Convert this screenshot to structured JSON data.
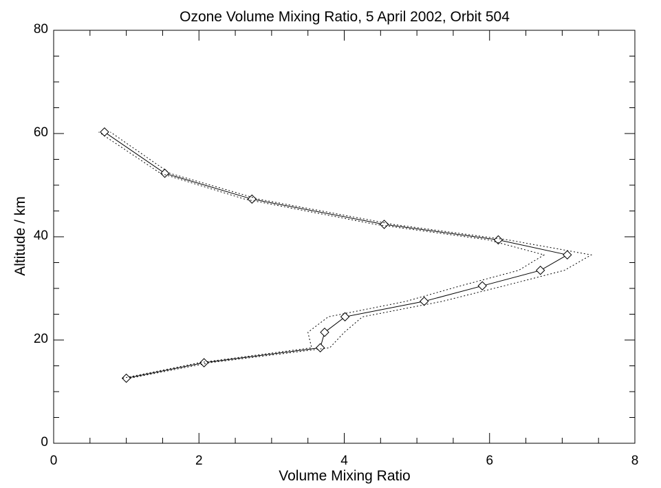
{
  "chart_data": {
    "type": "line",
    "title": "Ozone Volume Mixing Ratio, 5 April 2002, Orbit 504",
    "xlabel": "Volume Mixing Ratio",
    "ylabel": "Altitude / km",
    "xlim": [
      0,
      8
    ],
    "ylim": [
      0,
      80
    ],
    "x_major_ticks": [
      0,
      2,
      4,
      6,
      8
    ],
    "x_minor_ticks": [
      0.5,
      1,
      1.5,
      2.5,
      3,
      3.5,
      4.5,
      5,
      5.5,
      6.5,
      7,
      7.5
    ],
    "y_major_ticks": [
      0,
      20,
      40,
      60,
      80
    ],
    "y_minor_ticks": [
      5,
      10,
      15,
      25,
      30,
      35,
      45,
      50,
      55,
      65,
      70,
      75
    ],
    "x_tick_labels": [
      "0",
      "2",
      "4",
      "6",
      "8"
    ],
    "y_tick_labels": [
      "0",
      "20",
      "40",
      "60",
      "80"
    ],
    "grid": false,
    "series": [
      {
        "role": "profile",
        "line_style": "solid",
        "marker": "diamond",
        "points": [
          {
            "x": 1.0,
            "y": 12.6
          },
          {
            "x": 2.07,
            "y": 15.6
          },
          {
            "x": 3.67,
            "y": 18.5
          },
          {
            "x": 3.73,
            "y": 21.5
          },
          {
            "x": 4.01,
            "y": 24.5
          },
          {
            "x": 5.1,
            "y": 27.5
          },
          {
            "x": 5.9,
            "y": 30.5
          },
          {
            "x": 6.7,
            "y": 33.5
          },
          {
            "x": 7.07,
            "y": 36.5
          },
          {
            "x": 6.12,
            "y": 39.4
          },
          {
            "x": 4.55,
            "y": 42.4
          },
          {
            "x": 2.73,
            "y": 47.3
          },
          {
            "x": 1.53,
            "y": 52.3
          },
          {
            "x": 0.7,
            "y": 60.3
          }
        ]
      },
      {
        "role": "upper-bound",
        "line_style": "dotted",
        "marker": "none",
        "points": [
          {
            "x": 1.05,
            "y": 12.6
          },
          {
            "x": 2.15,
            "y": 15.6
          },
          {
            "x": 3.8,
            "y": 18.5
          },
          {
            "x": 4.0,
            "y": 21.5
          },
          {
            "x": 4.25,
            "y": 24.5
          },
          {
            "x": 5.35,
            "y": 27.5
          },
          {
            "x": 6.2,
            "y": 30.5
          },
          {
            "x": 7.03,
            "y": 33.5
          },
          {
            "x": 7.4,
            "y": 36.5
          },
          {
            "x": 6.25,
            "y": 39.4
          },
          {
            "x": 4.67,
            "y": 42.4
          },
          {
            "x": 2.82,
            "y": 47.3
          },
          {
            "x": 1.6,
            "y": 52.3
          },
          {
            "x": 0.78,
            "y": 60.3
          }
        ]
      },
      {
        "role": "lower-bound",
        "line_style": "dotted",
        "marker": "none",
        "points": [
          {
            "x": 0.95,
            "y": 12.6
          },
          {
            "x": 2.0,
            "y": 15.6
          },
          {
            "x": 3.55,
            "y": 18.5
          },
          {
            "x": 3.5,
            "y": 21.5
          },
          {
            "x": 3.78,
            "y": 24.5
          },
          {
            "x": 4.85,
            "y": 27.5
          },
          {
            "x": 5.6,
            "y": 30.5
          },
          {
            "x": 6.4,
            "y": 33.5
          },
          {
            "x": 6.75,
            "y": 36.5
          },
          {
            "x": 5.98,
            "y": 39.4
          },
          {
            "x": 4.43,
            "y": 42.4
          },
          {
            "x": 2.63,
            "y": 47.3
          },
          {
            "x": 1.47,
            "y": 52.3
          },
          {
            "x": 0.62,
            "y": 60.3
          }
        ]
      }
    ]
  }
}
